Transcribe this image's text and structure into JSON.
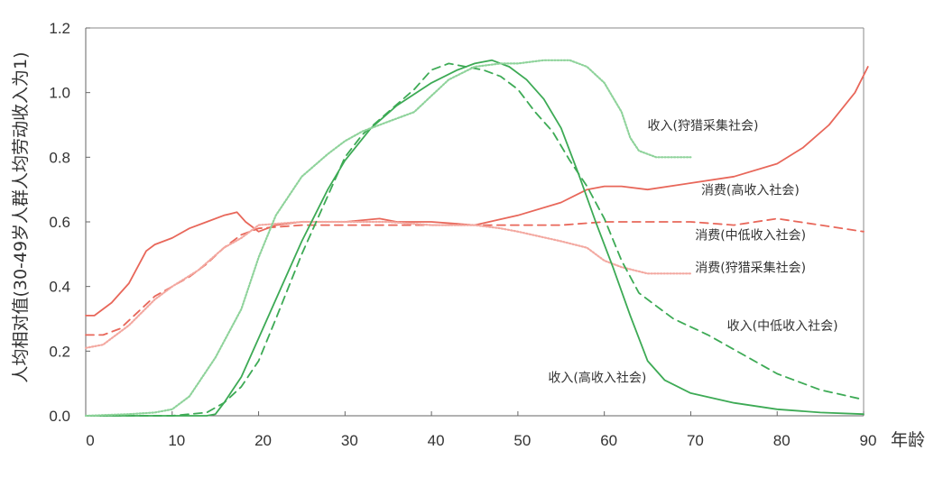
{
  "chart_data": {
    "type": "line",
    "title": "",
    "xlabel": "年龄",
    "ylabel": "人均相对值(30-49岁人群人均劳动收入为1)",
    "xlim": [
      0,
      90
    ],
    "ylim": [
      0,
      1.2
    ],
    "xticks": [
      "0",
      "10",
      "20",
      "30",
      "40",
      "50",
      "60",
      "70",
      "80",
      "90"
    ],
    "yticks": [
      "0.0",
      "0.2",
      "0.4",
      "0.6",
      "0.8",
      "1.0",
      "1.2"
    ],
    "grid": false,
    "legend": "inline-annotations",
    "colors": {
      "consumption": "#e8675a",
      "consumption_light": "#f3a8a0",
      "income": "#3daa55",
      "income_light": "#8fd39b"
    },
    "series": [
      {
        "name": "消费(高收入社会)",
        "role": "consumption",
        "style": "solid",
        "x": [
          0,
          1,
          3,
          5,
          7,
          8,
          10,
          12,
          14,
          16,
          17.5,
          18.5,
          20,
          22,
          25,
          30,
          34,
          36,
          40,
          45,
          50,
          55,
          58,
          60,
          62,
          65,
          70,
          75,
          80,
          83,
          86,
          89,
          90.5
        ],
        "y": [
          0.31,
          0.31,
          0.35,
          0.41,
          0.51,
          0.53,
          0.55,
          0.58,
          0.6,
          0.62,
          0.63,
          0.6,
          0.57,
          0.59,
          0.6,
          0.6,
          0.61,
          0.6,
          0.6,
          0.59,
          0.62,
          0.66,
          0.7,
          0.71,
          0.71,
          0.7,
          0.72,
          0.74,
          0.78,
          0.83,
          0.9,
          1.0,
          1.08
        ]
      },
      {
        "name": "消费(中低收入社会)",
        "role": "consumption",
        "style": "dashed",
        "x": [
          0,
          2,
          4,
          6,
          8,
          10,
          12,
          14,
          16,
          18,
          20,
          25,
          30,
          35,
          40,
          45,
          50,
          55,
          60,
          65,
          70,
          75,
          80,
          85,
          90
        ],
        "y": [
          0.25,
          0.25,
          0.27,
          0.32,
          0.37,
          0.4,
          0.43,
          0.47,
          0.52,
          0.56,
          0.58,
          0.59,
          0.59,
          0.59,
          0.59,
          0.59,
          0.59,
          0.59,
          0.6,
          0.6,
          0.6,
          0.59,
          0.61,
          0.59,
          0.57
        ]
      },
      {
        "name": "消费(狩猎采集社会)",
        "role": "consumption",
        "style": "dotted",
        "x": [
          0,
          2,
          5,
          8,
          10,
          13,
          16,
          18,
          20,
          25,
          30,
          35,
          40,
          45,
          48,
          50,
          55,
          58,
          60,
          62,
          65,
          70
        ],
        "y": [
          0.21,
          0.22,
          0.28,
          0.36,
          0.4,
          0.45,
          0.52,
          0.55,
          0.59,
          0.6,
          0.6,
          0.6,
          0.59,
          0.59,
          0.58,
          0.57,
          0.54,
          0.52,
          0.48,
          0.46,
          0.44,
          0.44
        ]
      },
      {
        "name": "收入(高收入社会)",
        "role": "income",
        "style": "solid",
        "x": [
          0,
          10,
          14,
          15,
          16,
          18,
          20,
          22,
          25,
          28,
          30,
          33,
          36,
          40,
          43,
          45,
          47,
          49,
          51,
          53,
          55,
          57,
          59,
          61,
          63,
          65,
          67,
          70,
          75,
          80,
          85,
          90
        ],
        "y": [
          0,
          0,
          0,
          0.005,
          0.04,
          0.12,
          0.24,
          0.36,
          0.54,
          0.7,
          0.79,
          0.89,
          0.96,
          1.03,
          1.07,
          1.09,
          1.1,
          1.08,
          1.04,
          0.98,
          0.89,
          0.75,
          0.6,
          0.46,
          0.31,
          0.17,
          0.11,
          0.07,
          0.04,
          0.02,
          0.01,
          0.005
        ]
      },
      {
        "name": "收入(中低收入社会)",
        "role": "income",
        "style": "dashed",
        "x": [
          0,
          10,
          14,
          16,
          18,
          20,
          22,
          25,
          28,
          30,
          32,
          35,
          38,
          40,
          42,
          44,
          46,
          48,
          50,
          52,
          54,
          56,
          58,
          60,
          62,
          64,
          66,
          68,
          72,
          76,
          80,
          85,
          90
        ],
        "y": [
          0,
          0,
          0.01,
          0.04,
          0.09,
          0.17,
          0.3,
          0.5,
          0.68,
          0.8,
          0.87,
          0.94,
          1.01,
          1.07,
          1.09,
          1.08,
          1.07,
          1.05,
          1.01,
          0.94,
          0.88,
          0.79,
          0.71,
          0.61,
          0.48,
          0.38,
          0.34,
          0.3,
          0.25,
          0.19,
          0.13,
          0.08,
          0.05
        ]
      },
      {
        "name": "收入(狩猎采集社会)",
        "role": "income",
        "style": "dotted",
        "x": [
          0,
          5,
          8,
          10,
          12,
          15,
          18,
          20,
          22,
          25,
          28,
          30,
          32,
          35,
          38,
          40,
          42,
          45,
          48,
          50,
          53,
          56,
          58,
          60,
          62,
          63,
          64,
          65,
          66,
          68,
          70
        ],
        "y": [
          0,
          0.005,
          0.01,
          0.02,
          0.06,
          0.18,
          0.33,
          0.49,
          0.62,
          0.74,
          0.81,
          0.85,
          0.88,
          0.91,
          0.94,
          0.99,
          1.04,
          1.08,
          1.09,
          1.09,
          1.1,
          1.1,
          1.08,
          1.03,
          0.94,
          0.86,
          0.82,
          0.81,
          0.8,
          0.8,
          0.8
        ]
      }
    ],
    "annotations": [
      {
        "text": "收入(狩猎采集社会)",
        "x": 65,
        "y": 0.885
      },
      {
        "text": "消费(高收入社会)",
        "x": 71.2,
        "y": 0.685
      },
      {
        "text": "消费(中低收入社会)",
        "x": 70.5,
        "y": 0.545
      },
      {
        "text": "消费(狩猎采集社会)",
        "x": 70.5,
        "y": 0.445
      },
      {
        "text": "收入(中低收入社会)",
        "x": 74.2,
        "y": 0.265
      },
      {
        "text": "收入(高收入社会)",
        "x": 53.5,
        "y": 0.105
      }
    ]
  }
}
